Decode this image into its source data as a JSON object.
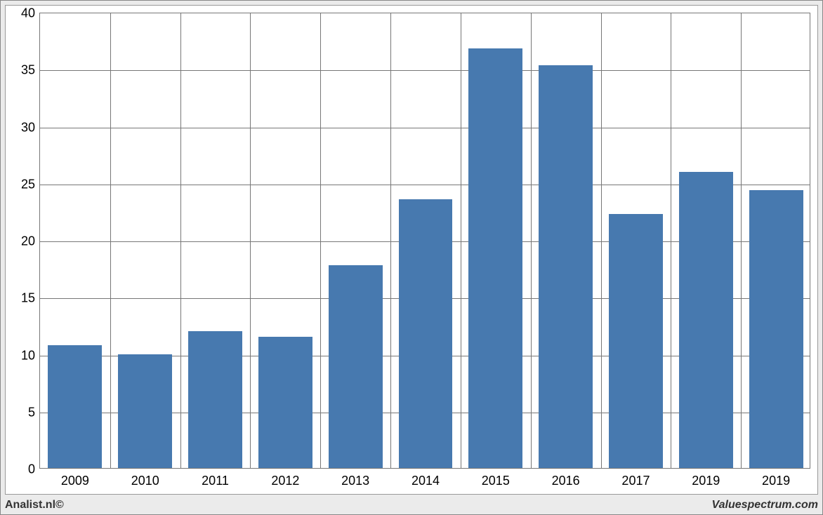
{
  "chart": {
    "type": "bar",
    "categories": [
      "2009",
      "2010",
      "2011",
      "2012",
      "2013",
      "2014",
      "2015",
      "2016",
      "2017",
      "2019",
      "2019"
    ],
    "values": [
      10.8,
      10.0,
      12.0,
      11.5,
      17.8,
      23.6,
      36.8,
      35.3,
      22.3,
      26.0,
      24.4
    ],
    "bar_color": "#4779af",
    "ylim_min": 0,
    "ylim_max": 40,
    "ytick_step": 5,
    "yticks": [
      0,
      5,
      10,
      15,
      20,
      25,
      30,
      35,
      40
    ],
    "bar_width_ratio": 0.77,
    "background_color": "#ffffff",
    "outer_background": "#ebebeb",
    "grid_color": "#777777",
    "border_color": "#888888",
    "axis_fontsize": 18,
    "footer_fontsize": 16
  },
  "footer": {
    "left_text": "Analist.nl©",
    "right_text": "Valuespectrum.com"
  }
}
